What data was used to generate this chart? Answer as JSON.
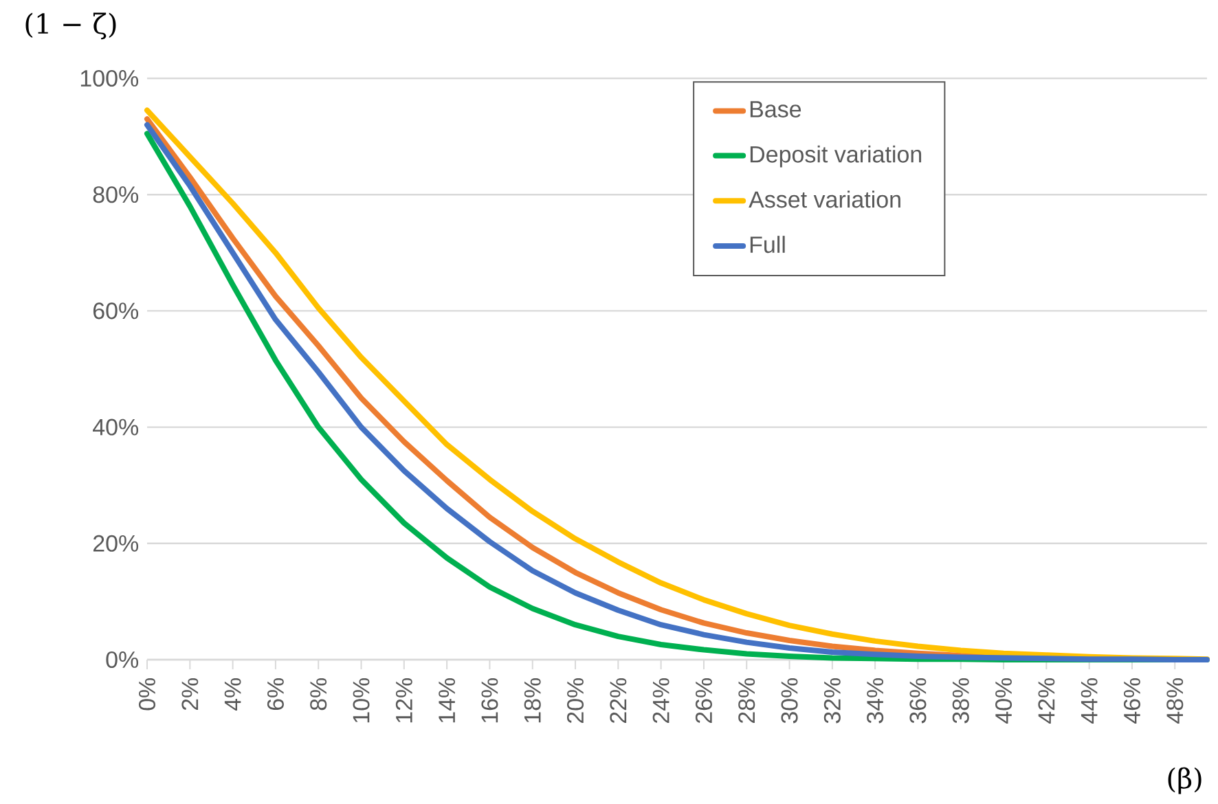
{
  "chart_data": {
    "type": "line",
    "xlabel": "(β)",
    "ylabel": "(1 − ζ)",
    "x": [
      0,
      2,
      4,
      6,
      8,
      10,
      12,
      14,
      16,
      18,
      20,
      22,
      24,
      26,
      28,
      30,
      32,
      34,
      36,
      38,
      40,
      42,
      44,
      46,
      48,
      49.5
    ],
    "series": [
      {
        "name": "Base",
        "color": "#ed7d31",
        "values": [
          93,
          83,
          72.5,
          62.5,
          54,
          45,
          37.5,
          30.8,
          24.5,
          19.3,
          15,
          11.5,
          8.6,
          6.3,
          4.6,
          3.3,
          2.3,
          1.6,
          1.1,
          0.7,
          0.5,
          0.3,
          null,
          null,
          null,
          null
        ]
      },
      {
        "name": "Deposit variation",
        "color": "#00b050",
        "values": [
          90.5,
          78,
          64.5,
          51.5,
          40,
          31,
          23.5,
          17.5,
          12.5,
          8.8,
          6,
          4,
          2.6,
          1.7,
          1,
          0.6,
          0.3,
          0.2,
          0.1,
          0.1,
          0,
          0,
          0,
          0,
          0,
          0
        ]
      },
      {
        "name": "Asset variation",
        "color": "#ffc000",
        "values": [
          94.5,
          86.5,
          78.5,
          70,
          60.5,
          52,
          44.5,
          37,
          31,
          25.5,
          20.8,
          16.8,
          13.2,
          10.3,
          7.9,
          5.9,
          4.4,
          3.2,
          2.3,
          1.6,
          1.1,
          0.8,
          0.5,
          0.3,
          0.2,
          0.1
        ]
      },
      {
        "name": "Full",
        "color": "#4472c4",
        "values": [
          92,
          81.5,
          70,
          58.5,
          49.5,
          40,
          32.5,
          26,
          20.3,
          15.3,
          11.5,
          8.5,
          6,
          4.3,
          3,
          2,
          1.3,
          0.9,
          0.6,
          0.4,
          0.3,
          0.2,
          0.1,
          0.1,
          0,
          0
        ]
      }
    ],
    "xlim": [
      0,
      49.5
    ],
    "xticks": [
      {
        "value": 0,
        "label": "0%"
      },
      {
        "value": 2,
        "label": "2%"
      },
      {
        "value": 4,
        "label": "4%"
      },
      {
        "value": 6,
        "label": "6%"
      },
      {
        "value": 8,
        "label": "8%"
      },
      {
        "value": 10,
        "label": "10%"
      },
      {
        "value": 12,
        "label": "12%"
      },
      {
        "value": 14,
        "label": "14%"
      },
      {
        "value": 16,
        "label": "16%"
      },
      {
        "value": 18,
        "label": "18%"
      },
      {
        "value": 20,
        "label": "20%"
      },
      {
        "value": 22,
        "label": "22%"
      },
      {
        "value": 24,
        "label": "24%"
      },
      {
        "value": 26,
        "label": "26%"
      },
      {
        "value": 28,
        "label": "28%"
      },
      {
        "value": 30,
        "label": "30%"
      },
      {
        "value": 32,
        "label": "32%"
      },
      {
        "value": 34,
        "label": "34%"
      },
      {
        "value": 36,
        "label": "36%"
      },
      {
        "value": 38,
        "label": "38%"
      },
      {
        "value": 40,
        "label": "40%"
      },
      {
        "value": 42,
        "label": "42%"
      },
      {
        "value": 44,
        "label": "44%"
      },
      {
        "value": 46,
        "label": "46%"
      },
      {
        "value": 48,
        "label": "48%"
      }
    ],
    "ylim": [
      0,
      100
    ],
    "yticks": [
      {
        "value": 0,
        "label": "0%"
      },
      {
        "value": 20,
        "label": "20%"
      },
      {
        "value": 40,
        "label": "40%"
      },
      {
        "value": 60,
        "label": "60%"
      },
      {
        "value": 80,
        "label": "80%"
      },
      {
        "value": 100,
        "label": "100%"
      }
    ],
    "grid": "y",
    "legend": "top right",
    "marker": "none",
    "line_style": "solid"
  }
}
